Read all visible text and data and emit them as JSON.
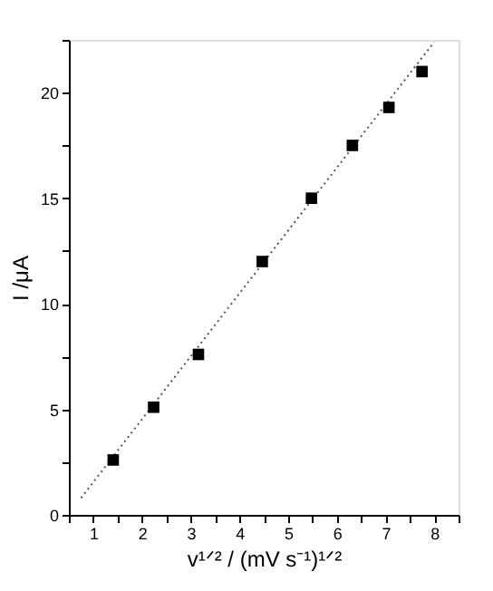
{
  "chart_data": {
    "type": "scatter",
    "xlabel": "v¹ᐟ²  / (mV s⁻¹)¹ᐟ²",
    "ylabel": "I /μA",
    "xlim": [
      0.5,
      8.5
    ],
    "ylim": [
      0,
      22.5
    ],
    "xticks": [
      {
        "value": 0.5,
        "label": null
      },
      1,
      {
        "value": 1.5,
        "label": null
      },
      2,
      {
        "value": 2.5,
        "label": null
      },
      3,
      {
        "value": 3.5,
        "label": null
      },
      4,
      {
        "value": 4.5,
        "label": null
      },
      5,
      {
        "value": 5.5,
        "label": null
      },
      6,
      {
        "value": 6.5,
        "label": null
      },
      7,
      {
        "value": 7.5,
        "label": null
      },
      8,
      {
        "value": 8.5,
        "label": null
      }
    ],
    "yticks": [
      0,
      {
        "value": 2.5,
        "label": null
      },
      5,
      {
        "value": 7.5,
        "label": null
      },
      10,
      {
        "value": 12.5,
        "label": null
      },
      15,
      {
        "value": 17.5,
        "label": null
      },
      20,
      {
        "value": 22.5,
        "label": null
      }
    ],
    "grid": false,
    "marker": "square",
    "series": [
      {
        "color": "#000000",
        "x": [
          1.41,
          2.24,
          3.16,
          4.47,
          5.48,
          6.32,
          7.07,
          7.75
        ],
        "values": [
          2.6,
          5.1,
          7.6,
          12.0,
          15.0,
          17.5,
          19.3,
          21.0
        ]
      },
      {
        "type": "line",
        "color": "#555555",
        "line_style": "dotted",
        "marker": "none",
        "x": [
          0.75,
          8.0
        ],
        "values": [
          0.8,
          22.4
        ]
      }
    ]
  }
}
